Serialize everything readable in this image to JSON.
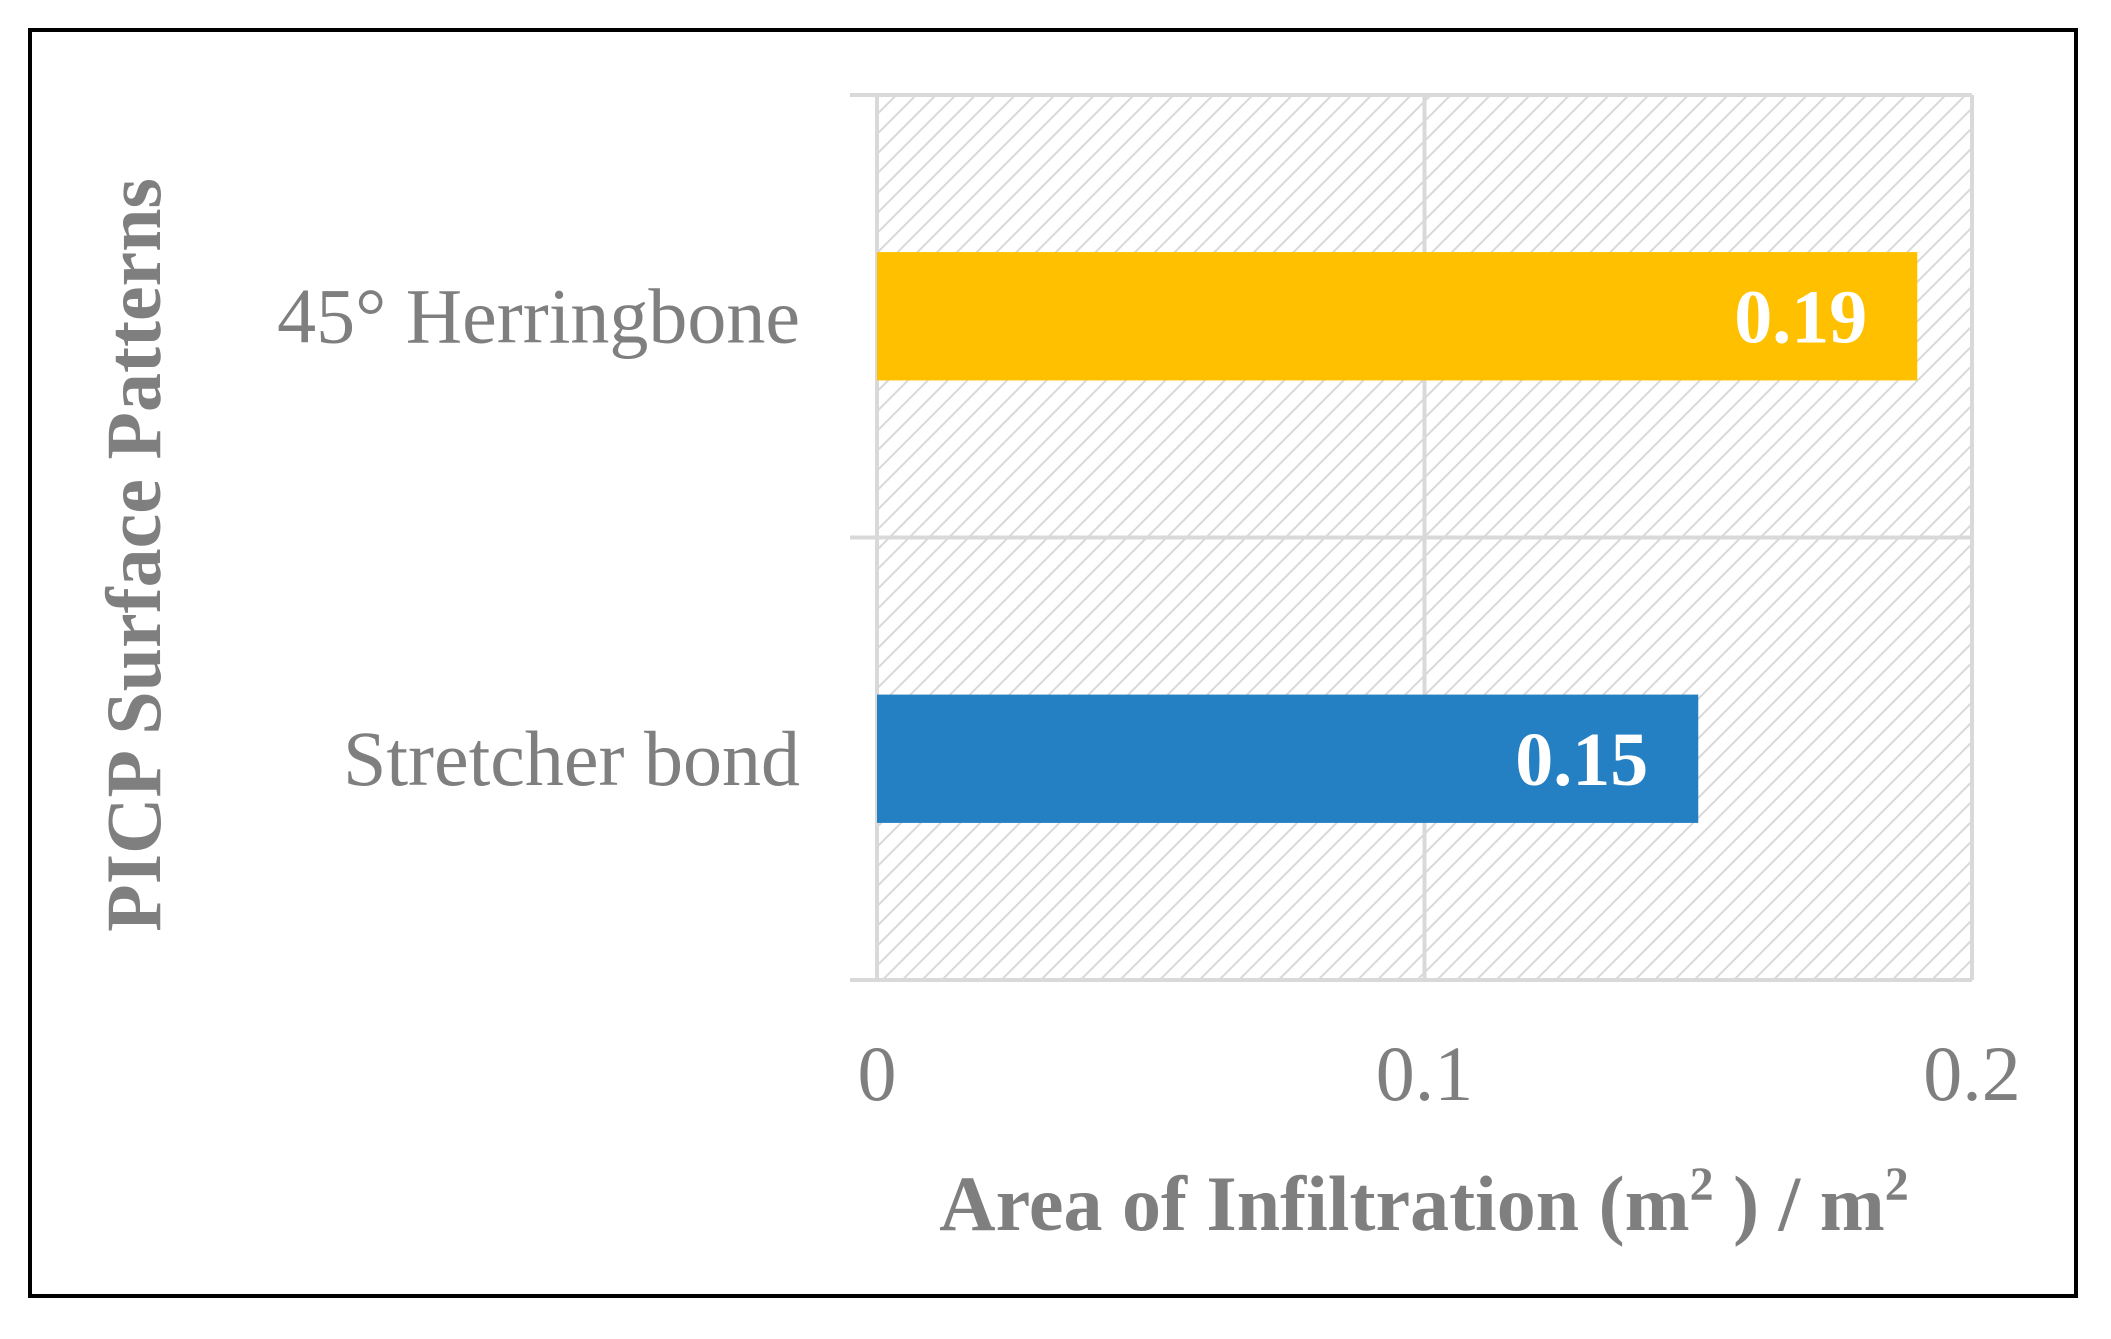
{
  "chart_data": {
    "type": "bar",
    "orientation": "horizontal",
    "categories": [
      "45° Herringbone",
      "Stretcher bond"
    ],
    "values": [
      0.19,
      0.15
    ],
    "value_labels": [
      "0.19",
      "0.15"
    ],
    "colors": [
      "#FFC000",
      "#2580C3"
    ],
    "xlabel": {
      "main": "Area of Infiltration (m",
      "sup1": "2",
      "mid": " ) / m",
      "sup2": "2"
    },
    "ylabel": "PICP Surface Patterns",
    "xlim": [
      0,
      0.2
    ],
    "xticks": [
      0,
      0.1,
      0.2
    ],
    "xtick_labels": [
      "0",
      "0.1",
      "0.2"
    ],
    "grid": true,
    "plot_background": "diagonal-hatch",
    "legend": "none"
  }
}
